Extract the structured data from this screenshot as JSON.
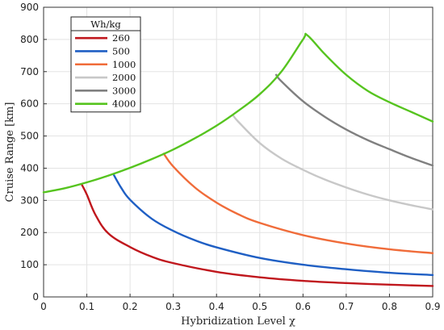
{
  "chart_data": {
    "type": "line",
    "xlabel": "Hybridization Level χ",
    "ylabel": "Cruise Range [km]",
    "xlim": [
      0,
      0.9
    ],
    "ylim": [
      0,
      900
    ],
    "xticks": [
      "0",
      "0.1",
      "0.2",
      "0.3",
      "0.4",
      "0.5",
      "0.6",
      "0.7",
      "0.8",
      "0.9"
    ],
    "yticks": [
      "0",
      "100",
      "200",
      "300",
      "400",
      "500",
      "600",
      "700",
      "800",
      "900"
    ],
    "grid": true,
    "legend": {
      "title": "Wh/kg",
      "placement": "top-left"
    },
    "series": [
      {
        "name": "260",
        "color": "#c0171d",
        "x": [
          0.088,
          0.1,
          0.12,
          0.15,
          0.2,
          0.25,
          0.3,
          0.4,
          0.5,
          0.6,
          0.7,
          0.8,
          0.9
        ],
        "y": [
          350,
          318,
          255,
          197,
          155,
          125,
          105,
          78,
          61,
          50,
          43,
          38,
          34
        ]
      },
      {
        "name": "500",
        "color": "#1f5fc4",
        "x": [
          0.162,
          0.18,
          0.2,
          0.25,
          0.3,
          0.35,
          0.4,
          0.5,
          0.6,
          0.7,
          0.8,
          0.9
        ],
        "y": [
          380,
          338,
          302,
          243,
          205,
          176,
          154,
          121,
          100,
          86,
          75,
          68
        ]
      },
      {
        "name": "1000",
        "color": "#f06c3a",
        "x": [
          0.278,
          0.3,
          0.35,
          0.4,
          0.45,
          0.5,
          0.6,
          0.7,
          0.8,
          0.9
        ],
        "y": [
          445,
          405,
          340,
          293,
          257,
          230,
          192,
          166,
          148,
          136
        ]
      },
      {
        "name": "2000",
        "color": "#c8c8c8",
        "x": [
          0.438,
          0.45,
          0.5,
          0.55,
          0.6,
          0.65,
          0.7,
          0.75,
          0.8,
          0.85,
          0.9
        ],
        "y": [
          565,
          545,
          478,
          430,
          395,
          365,
          340,
          318,
          300,
          285,
          272
        ]
      },
      {
        "name": "3000",
        "color": "#808080",
        "x": [
          0.538,
          0.55,
          0.6,
          0.65,
          0.7,
          0.75,
          0.8,
          0.85,
          0.9
        ],
        "y": [
          690,
          670,
          608,
          560,
          520,
          487,
          459,
          432,
          408
        ]
      },
      {
        "name": "4000",
        "color": "#56c41f",
        "x": [
          0,
          0.05,
          0.1,
          0.15,
          0.2,
          0.25,
          0.3,
          0.35,
          0.4,
          0.45,
          0.5,
          0.55,
          0.6,
          0.61,
          0.65,
          0.7,
          0.75,
          0.8,
          0.85,
          0.9
        ],
        "y": [
          325,
          338,
          356,
          377,
          401,
          428,
          458,
          493,
          532,
          578,
          630,
          700,
          800,
          813,
          755,
          690,
          640,
          605,
          575,
          545
        ]
      }
    ]
  }
}
